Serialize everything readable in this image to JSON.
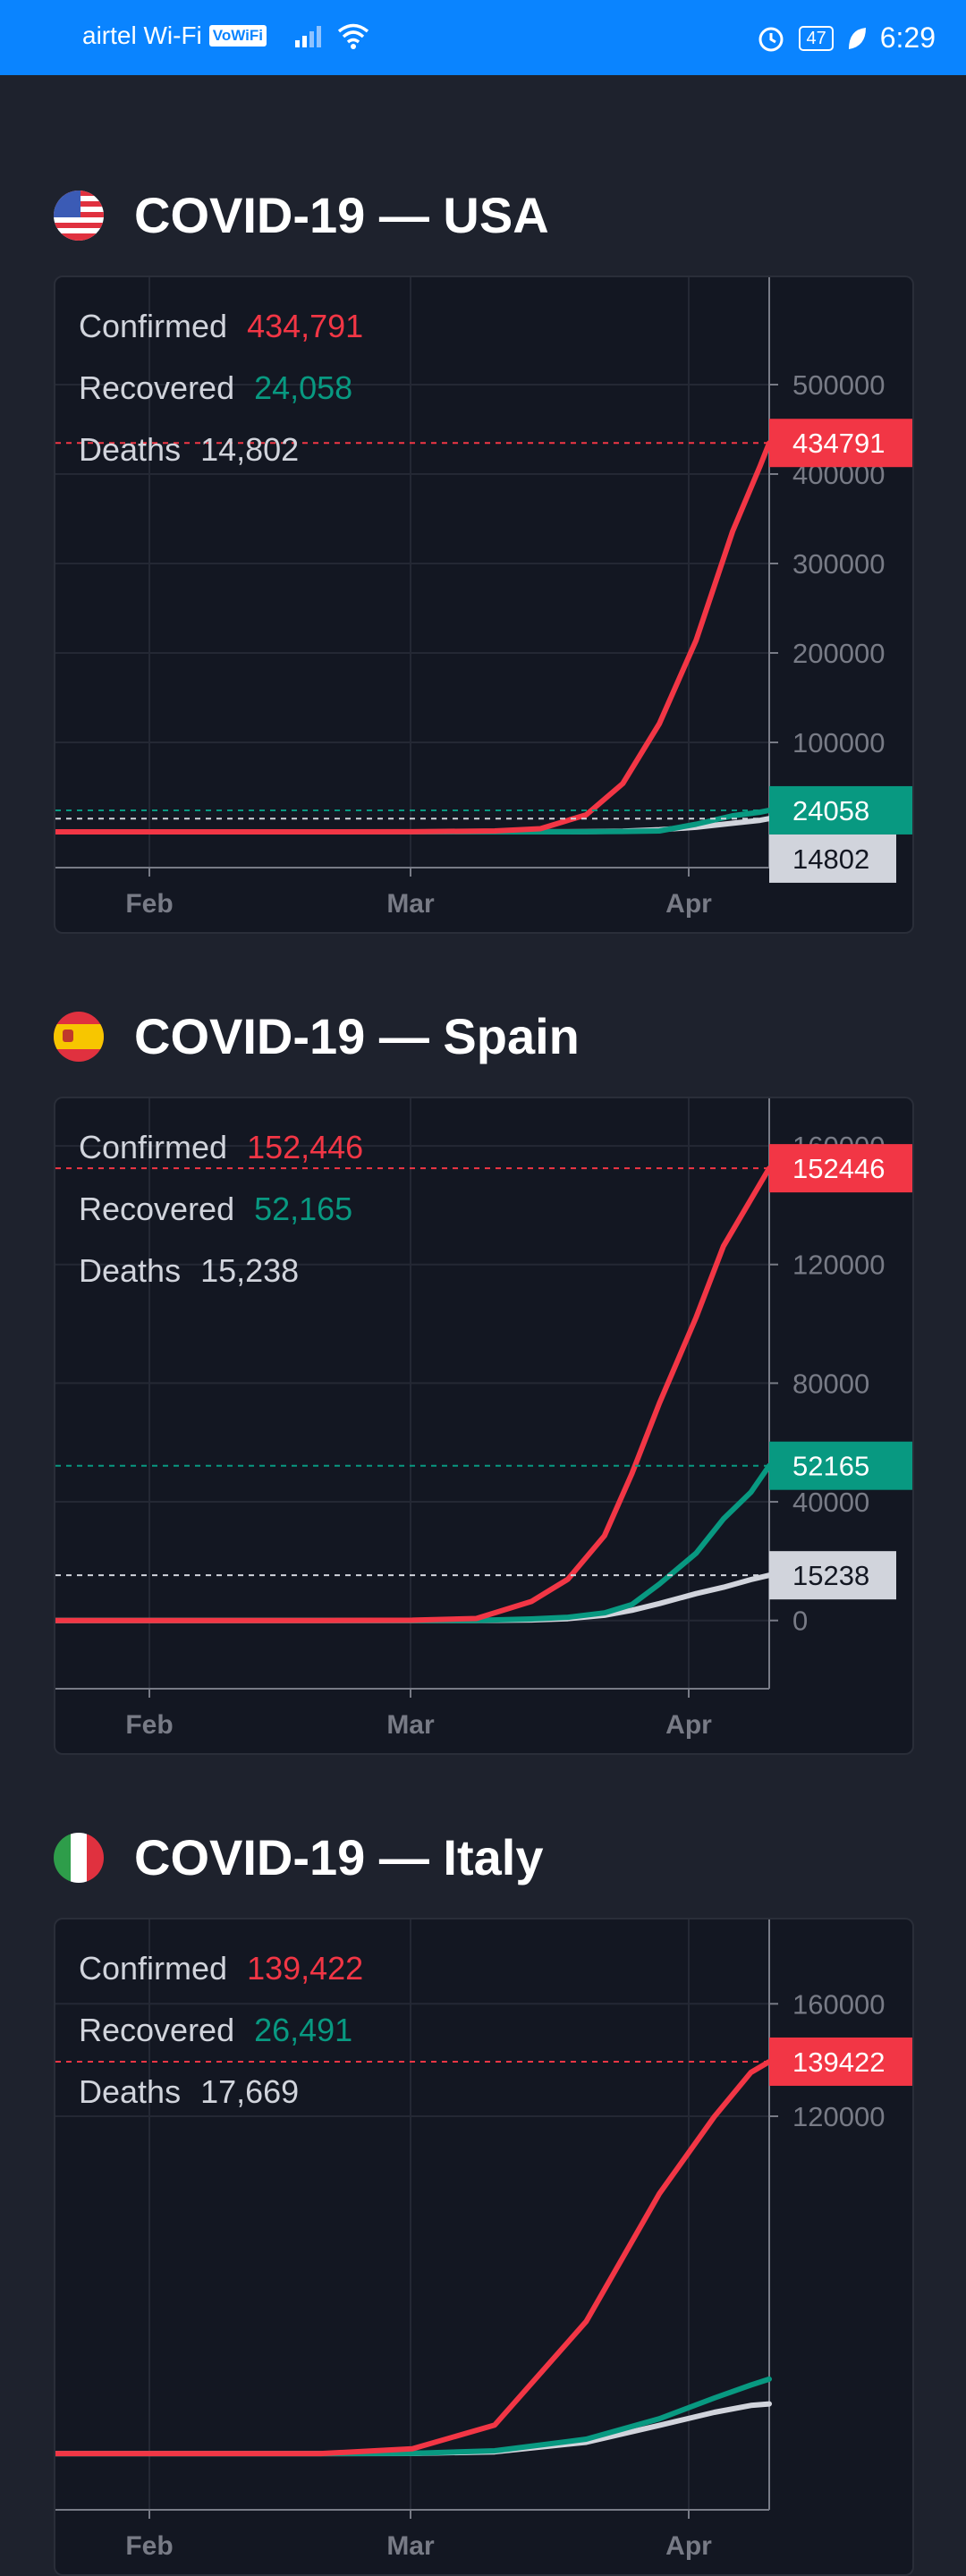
{
  "status_bar": {
    "carrier": "airtel Wi-Fi",
    "vowifi": "VoWiFi",
    "battery": "47",
    "time": "6:29"
  },
  "colors": {
    "confirmed": "#f23645",
    "recovered": "#089981",
    "deaths": "#d1d4dc",
    "background": "#1e222d",
    "panel": "#131722",
    "statusbar": "#0a84ff"
  },
  "sections": [
    {
      "title": "COVID-19 — USA",
      "flag": "usa-flag-icon",
      "stats": [
        {
          "label": "Confirmed",
          "value": "434,791"
        },
        {
          "label": "Recovered",
          "value": "24,058"
        },
        {
          "label": "Deaths",
          "value": "14,802"
        }
      ]
    },
    {
      "title": "COVID-19 — Spain",
      "flag": "spain-flag-icon",
      "stats": [
        {
          "label": "Confirmed",
          "value": "152,446"
        },
        {
          "label": "Recovered",
          "value": "52,165"
        },
        {
          "label": "Deaths",
          "value": "15,238"
        }
      ]
    },
    {
      "title": "COVID-19 — Italy",
      "flag": "italy-flag-icon",
      "stats": [
        {
          "label": "Confirmed",
          "value": "139,422"
        },
        {
          "label": "Recovered",
          "value": "26,491"
        },
        {
          "label": "Deaths",
          "value": "17,669"
        }
      ]
    }
  ],
  "chart_data": [
    {
      "type": "line",
      "title": "COVID-19 — USA",
      "x": [
        "Jan 22",
        "Feb 1",
        "Feb 10",
        "Feb 20",
        "Mar 1",
        "Mar 10",
        "Mar 15",
        "Mar 20",
        "Mar 24",
        "Mar 28",
        "Apr 1",
        "Apr 5",
        "Apr 8",
        "Apr 9"
      ],
      "x_ticks": [
        "Feb",
        "Mar",
        "Apr"
      ],
      "y_ticks": [
        100000,
        200000,
        300000,
        400000,
        500000
      ],
      "ylim": [
        -40000,
        620000
      ],
      "series": [
        {
          "name": "Confirmed",
          "values": [
            1,
            8,
            12,
            15,
            75,
            1000,
            3500,
            19000,
            54000,
            121000,
            214000,
            336000,
            409000,
            434791
          ]
        },
        {
          "name": "Recovered",
          "values": [
            0,
            0,
            3,
            5,
            7,
            8,
            12,
            150,
            350,
            1000,
            8500,
            18000,
            22000,
            24058
          ]
        },
        {
          "name": "Deaths",
          "values": [
            0,
            0,
            0,
            0,
            1,
            30,
            60,
            250,
            800,
            2400,
            5100,
            9600,
            12900,
            14802
          ]
        }
      ],
      "last_value_labels": [
        "434791",
        "24058",
        "14802"
      ],
      "grid": true
    },
    {
      "type": "line",
      "title": "COVID-19 — Spain",
      "x": [
        "Jan 22",
        "Feb 1",
        "Feb 10",
        "Feb 20",
        "Mar 1",
        "Mar 8",
        "Mar 14",
        "Mar 18",
        "Mar 22",
        "Mar 25",
        "Mar 28",
        "Apr 1",
        "Apr 4",
        "Apr 7",
        "Apr 9"
      ],
      "x_ticks": [
        "Feb",
        "Mar",
        "Apr"
      ],
      "y_ticks": [
        0,
        40000,
        80000,
        120000,
        160000
      ],
      "ylim": [
        -23000,
        176000
      ],
      "series": [
        {
          "name": "Confirmed",
          "values": [
            0,
            1,
            2,
            2,
            84,
            673,
            6391,
            13910,
            28572,
            49515,
            73235,
            102136,
            126168,
            141942,
            152446
          ]
        },
        {
          "name": "Recovered",
          "values": [
            0,
            0,
            0,
            2,
            2,
            30,
            517,
            1081,
            2575,
            5367,
            12285,
            22647,
            34219,
            43208,
            52165
          ]
        },
        {
          "name": "Deaths",
          "values": [
            0,
            0,
            0,
            0,
            0,
            17,
            195,
            623,
            1756,
            3434,
            5690,
            9053,
            11198,
            13798,
            15238
          ]
        }
      ],
      "last_value_labels": [
        "152446",
        "52165",
        "15238"
      ],
      "grid": true
    },
    {
      "type": "line",
      "title": "COVID-19 — Italy",
      "x": [
        "Jan 22",
        "Feb 1",
        "Feb 10",
        "Feb 20",
        "Mar 1",
        "Mar 10",
        "Mar 20",
        "Mar 28",
        "Apr 3",
        "Apr 7",
        "Apr 9"
      ],
      "x_ticks": [
        "Feb",
        "Mar",
        "Apr"
      ],
      "y_ticks": [
        120000,
        160000
      ],
      "ylim": [
        -20000,
        190000
      ],
      "series": [
        {
          "name": "Confirmed",
          "values": [
            0,
            2,
            3,
            3,
            1694,
            10149,
            47021,
            92472,
            119827,
            135586,
            139422
          ]
        },
        {
          "name": "Recovered",
          "values": [
            0,
            0,
            0,
            0,
            83,
            1004,
            5129,
            12384,
            19758,
            24392,
            26491
          ]
        },
        {
          "name": "Deaths",
          "values": [
            0,
            0,
            0,
            0,
            34,
            631,
            4032,
            10023,
            14681,
            17127,
            17669
          ]
        }
      ],
      "last_value_labels": [
        "139422"
      ],
      "grid": true
    }
  ]
}
